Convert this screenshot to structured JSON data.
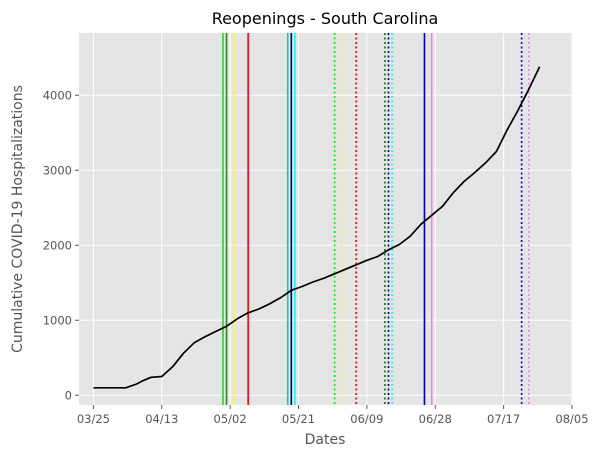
{
  "chart_data": {
    "type": "line",
    "title": "Reopenings - South Carolina",
    "xlabel": "Dates",
    "ylabel": "Cumulative COVID-19 Hospitalizations",
    "x_ticks": [
      "03/25",
      "04/13",
      "05/02",
      "05/21",
      "06/09",
      "06/28",
      "07/17",
      "08/05"
    ],
    "y_ticks": [
      0,
      1000,
      2000,
      3000,
      4000
    ],
    "xlim": [
      "2020-03-21",
      "2020-08-05"
    ],
    "ylim": [
      -130,
      4830
    ],
    "grid": true,
    "series": [
      {
        "color": "#000000",
        "x": [
          "2020-03-25",
          "2020-03-28",
          "2020-03-31",
          "2020-04-03",
          "2020-04-06",
          "2020-04-08",
          "2020-04-10",
          "2020-04-13",
          "2020-04-16",
          "2020-04-19",
          "2020-04-22",
          "2020-04-25",
          "2020-04-28",
          "2020-05-01",
          "2020-05-04",
          "2020-05-07",
          "2020-05-10",
          "2020-05-13",
          "2020-05-16",
          "2020-05-19",
          "2020-05-22",
          "2020-05-25",
          "2020-05-28",
          "2020-05-31",
          "2020-06-03",
          "2020-06-06",
          "2020-06-09",
          "2020-06-12",
          "2020-06-15",
          "2020-06-18",
          "2020-06-21",
          "2020-06-24",
          "2020-06-27",
          "2020-06-30",
          "2020-07-03",
          "2020-07-06",
          "2020-07-09",
          "2020-07-12",
          "2020-07-15",
          "2020-07-18",
          "2020-07-21",
          "2020-07-24",
          "2020-07-27"
        ],
        "values": [
          100,
          100,
          100,
          100,
          150,
          200,
          240,
          250,
          380,
          560,
          700,
          780,
          850,
          920,
          1020,
          1100,
          1150,
          1220,
          1300,
          1400,
          1450,
          1510,
          1560,
          1620,
          1680,
          1740,
          1800,
          1850,
          1940,
          2010,
          2120,
          2280,
          2400,
          2520,
          2700,
          2850,
          2970,
          3100,
          3250,
          3540,
          3800,
          4080,
          4380
        ]
      }
    ],
    "vlines": [
      {
        "x": "2020-04-30",
        "color": "#32cd32",
        "style": "solid"
      },
      {
        "x": "2020-05-01",
        "color": "#228b22",
        "style": "solid"
      },
      {
        "x": "2020-05-03",
        "color": "#ffff00",
        "style": "solid"
      },
      {
        "x": "2020-05-07",
        "color": "#ff0000",
        "style": "solid"
      },
      {
        "x": "2020-05-18",
        "color": "#00ced1",
        "style": "solid"
      },
      {
        "x": "2020-05-19",
        "color": "#000080",
        "style": "solid"
      },
      {
        "x": "2020-05-20",
        "color": "#00ffff",
        "style": "solid"
      },
      {
        "x": "2020-05-31",
        "color": "#00ff00",
        "style": "dotted"
      },
      {
        "x": "2020-06-02",
        "color": "#ffff00",
        "style": "dotted"
      },
      {
        "x": "2020-06-06",
        "color": "#ff0000",
        "style": "dotted"
      },
      {
        "x": "2020-06-14",
        "color": "#008000",
        "style": "dotted"
      },
      {
        "x": "2020-06-15",
        "color": "#000080",
        "style": "dotted"
      },
      {
        "x": "2020-06-16",
        "color": "#00ffff",
        "style": "dotted"
      },
      {
        "x": "2020-06-25",
        "color": "#0000cd",
        "style": "solid"
      },
      {
        "x": "2020-06-27",
        "color": "#ee82ee",
        "style": "solid"
      },
      {
        "x": "2020-07-22",
        "color": "#0000ff",
        "style": "dotted"
      },
      {
        "x": "2020-07-24",
        "color": "#ee82ee",
        "style": "dotted"
      }
    ]
  }
}
